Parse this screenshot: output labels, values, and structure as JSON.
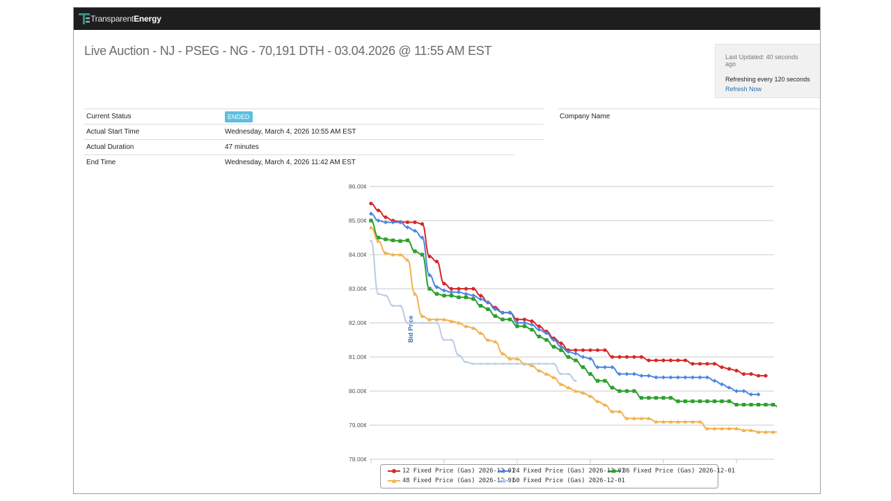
{
  "app": {
    "brand_light": "Transparent",
    "brand_bold": "Energy"
  },
  "page": {
    "title": "Live Auction - NJ - PSEG - NG - 70,191 DTH - 03.04.2026 @ 11:55 AM EST"
  },
  "refresh": {
    "last_updated": "Last Updated: 40 seconds ago",
    "refreshing": "Refreshing every 120 seconds",
    "refresh_now": "Refresh Now"
  },
  "status": {
    "rows": [
      {
        "label": "Current Status",
        "value": "ENDED"
      },
      {
        "label": "Actual Start Time",
        "value": "Wednesday, March 4, 2026 10:55 AM EST"
      },
      {
        "label": "Actual Duration",
        "value": "47 minutes"
      },
      {
        "label": "End Time",
        "value": "Wednesday, March 4, 2026 11:42 AM EST"
      }
    ],
    "company_header": "Company Name"
  },
  "colors": {
    "s12": "#d62728",
    "s24": "#4a86e0",
    "s36": "#2ca02c",
    "s48": "#f0b24f",
    "s60": "#b8cce8"
  },
  "chart_data": {
    "type": "line",
    "ylabel": "Bid Price",
    "ylim": [
      78,
      86
    ],
    "yticks": [
      "78.00¢",
      "79.00¢",
      "80.00¢",
      "81.00¢",
      "82.00¢",
      "83.00¢",
      "84.00¢",
      "85.00¢",
      "86.00¢"
    ],
    "grid": true,
    "legend_position": "bottom",
    "series": [
      {
        "name": "12 Fixed Price (Gas) 2026-12-01",
        "marker": "circle",
        "values": [
          85.5,
          85.3,
          85.1,
          85.0,
          84.96,
          84.95,
          84.95,
          84.9,
          83.95,
          83.8,
          83.15,
          83.0,
          83.0,
          83.0,
          83.0,
          82.8,
          82.6,
          82.45,
          82.3,
          82.3,
          82.1,
          82.1,
          82.05,
          81.9,
          81.75,
          81.55,
          81.4,
          81.2,
          81.2,
          81.2,
          81.2,
          81.2,
          81.2,
          81.0,
          81.0,
          81.0,
          81.0,
          81.0,
          80.9,
          80.9,
          80.9,
          80.9,
          80.9,
          80.9,
          80.8,
          80.8,
          80.8,
          80.8,
          80.7,
          80.65,
          80.6,
          80.5,
          80.5,
          80.45,
          80.45
        ]
      },
      {
        "name": "24 Fixed Price (Gas) 2026-12-01",
        "marker": "diamond",
        "values": [
          85.2,
          85.0,
          84.95,
          84.95,
          84.95,
          84.8,
          84.7,
          84.5,
          83.4,
          83.05,
          82.95,
          82.9,
          82.9,
          82.85,
          82.8,
          82.7,
          82.6,
          82.4,
          82.3,
          82.3,
          82.0,
          82.0,
          81.95,
          81.8,
          81.7,
          81.5,
          81.3,
          81.15,
          81.1,
          81.0,
          80.95,
          80.7,
          80.7,
          80.7,
          80.5,
          80.5,
          80.5,
          80.45,
          80.45,
          80.4,
          80.4,
          80.4,
          80.4,
          80.4,
          80.4,
          80.4,
          80.4,
          80.3,
          80.2,
          80.1,
          80.0,
          80.0,
          79.9,
          79.9
        ]
      },
      {
        "name": "36 Fixed Price (Gas) 2026-12-01",
        "marker": "square",
        "values": [
          85.0,
          84.5,
          84.45,
          84.42,
          84.4,
          84.42,
          84.1,
          84.0,
          83.0,
          82.85,
          82.8,
          82.8,
          82.75,
          82.75,
          82.7,
          82.5,
          82.4,
          82.2,
          82.1,
          82.1,
          81.9,
          81.9,
          81.8,
          81.6,
          81.5,
          81.3,
          81.2,
          81.0,
          80.9,
          80.7,
          80.5,
          80.3,
          80.3,
          80.1,
          80.0,
          80.0,
          80.0,
          79.8,
          79.8,
          79.8,
          79.8,
          79.8,
          79.7,
          79.7,
          79.7,
          79.7,
          79.7,
          79.7,
          79.7,
          79.7,
          79.6,
          79.6,
          79.6,
          79.6,
          79.6,
          79.6,
          79.5
        ]
      },
      {
        "name": "48 Fixed Price (Gas) 2026-12-01",
        "marker": "triangle",
        "values": [
          84.8,
          84.4,
          84.05,
          84.0,
          84.0,
          83.85,
          82.85,
          82.2,
          82.1,
          82.1,
          82.1,
          82.05,
          82.0,
          81.9,
          81.85,
          81.7,
          81.5,
          81.45,
          81.1,
          80.95,
          80.95,
          80.8,
          80.75,
          80.6,
          80.5,
          80.4,
          80.2,
          80.1,
          80.0,
          79.95,
          79.85,
          79.7,
          79.6,
          79.4,
          79.4,
          79.2,
          79.2,
          79.2,
          79.2,
          79.1,
          79.1,
          79.1,
          79.1,
          79.1,
          79.1,
          79.1,
          78.9,
          78.9,
          78.9,
          78.9,
          78.9,
          78.85,
          78.85,
          78.8,
          78.8,
          78.8,
          78.8,
          78.8,
          78.7,
          78.7,
          78.7,
          78.7,
          78.7,
          78.6
        ]
      },
      {
        "name": "60 Fixed Price (Gas) 2026-12-01",
        "marker": "circle",
        "values": [
          84.4,
          82.85,
          82.8,
          82.5,
          82.5,
          82.0,
          82.0,
          82.0,
          82.0,
          82.0,
          81.5,
          81.5,
          81.05,
          80.85,
          80.8,
          80.8,
          80.8,
          80.8,
          80.8,
          80.8,
          80.8,
          80.8,
          80.8,
          80.8,
          80.8,
          80.8,
          80.5,
          80.5,
          80.3
        ]
      }
    ]
  }
}
